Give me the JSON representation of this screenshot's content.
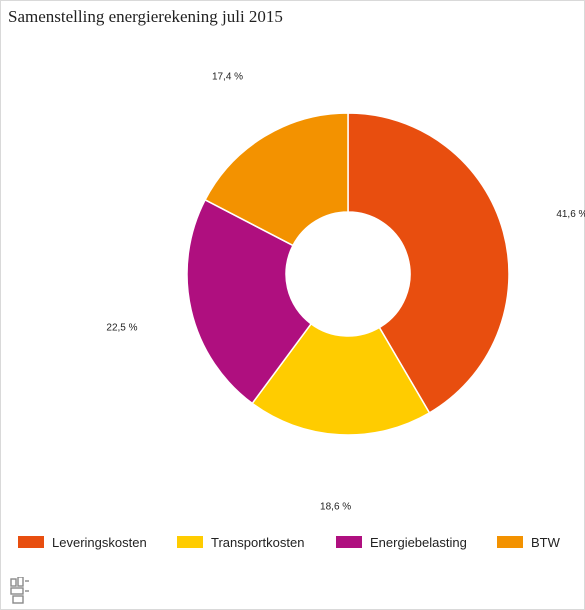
{
  "chart_data": {
    "type": "pie",
    "title": "Samenstelling energierekening juli 2015",
    "donut": true,
    "categories": [
      "Leveringskosten",
      "Transportkosten",
      "Energiebelasting",
      "BTW"
    ],
    "values": [
      41.6,
      18.6,
      22.5,
      17.4
    ],
    "data_labels": [
      "41,6 %",
      "18,6 %",
      "22,5 %",
      "17,4 %"
    ],
    "colors": [
      "#e84e0f",
      "#ffcc00",
      "#af0f7f",
      "#f39200"
    ],
    "legend_position": "bottom",
    "start": "top, clockwise"
  },
  "logo": {
    "name": "cbs-logo",
    "text": "cbs"
  }
}
